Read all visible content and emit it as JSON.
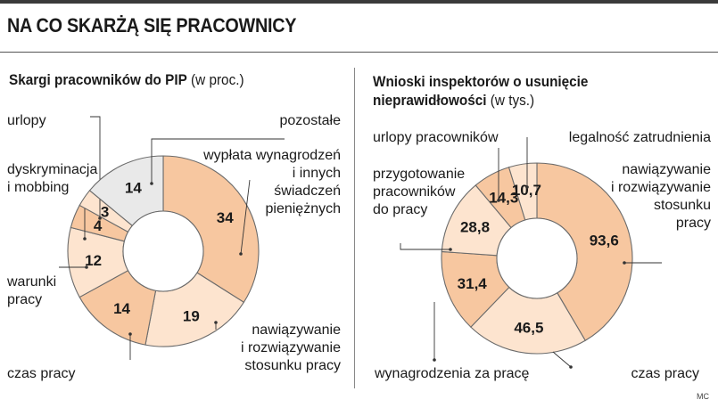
{
  "headline": "NA CO SKARŻĄ SIĘ PRACOWNICY",
  "credit": "MC",
  "colors": {
    "accent": "#c8102e",
    "fill_dark": "#f7c7a0",
    "fill_light": "#fde4cf",
    "fill_grey": "#e9e9e9",
    "stroke": "#6b6b6b",
    "leader": "#333333"
  },
  "chart_data": [
    {
      "type": "pie",
      "title": "Skargi pracowników do PIP",
      "subtitle": "(w proc.)",
      "slices": [
        {
          "label": "wypłata wynagrodzeń i innych świadczeń pieniężnych",
          "label_lines": [
            "wypłata wynagrodzeń",
            "i innych",
            "świadczeń",
            "pieniężnych"
          ],
          "value": 34,
          "value_label": "34",
          "fill": "fill_dark"
        },
        {
          "label": "nawiązywanie i rozwiązywanie stosunku pracy",
          "label_lines": [
            "nawiązywanie",
            "i rozwiązywanie",
            "stosunku pracy"
          ],
          "value": 19,
          "value_label": "19",
          "fill": "fill_light"
        },
        {
          "label": "czas pracy",
          "label_lines": [
            "czas pracy"
          ],
          "value": 14,
          "value_label": "14",
          "fill": "fill_dark"
        },
        {
          "label": "warunki pracy",
          "label_lines": [
            "warunki",
            "pracy"
          ],
          "value": 12,
          "value_label": "12",
          "fill": "fill_light"
        },
        {
          "label": "dyskryminacja i mobbing",
          "label_lines": [
            "dyskryminacja",
            "i mobbing"
          ],
          "value": 4,
          "value_label": "4",
          "fill": "fill_dark"
        },
        {
          "label": "urlopy",
          "label_lines": [
            "urlopy"
          ],
          "value": 3,
          "value_label": "3",
          "fill": "fill_light"
        },
        {
          "label": "pozostałe",
          "label_lines": [
            "pozostałe"
          ],
          "value": 14,
          "value_label": "14",
          "fill": "fill_grey"
        }
      ]
    },
    {
      "type": "pie",
      "title": "Wnioski inspektorów o usunięcie nieprawidłowości",
      "title_lines": [
        "Wnioski inspektorów o usunięcie",
        "nieprawidłowości"
      ],
      "subtitle": "(w tys.)",
      "slices": [
        {
          "label": "nawiązywanie i rozwiązywanie stosunku pracy",
          "label_lines": [
            "nawiązywanie",
            "i rozwiązywanie",
            "stosunku",
            "pracy"
          ],
          "value": 93.6,
          "value_label": "93,6",
          "fill": "fill_dark"
        },
        {
          "label": "czas pracy",
          "label_lines": [
            "czas pracy"
          ],
          "value": 46.5,
          "value_label": "46,5",
          "fill": "fill_light"
        },
        {
          "label": "wynagrodzenia za pracę",
          "label_lines": [
            "wynagrodzenia za pracę"
          ],
          "value": 31.4,
          "value_label": "31,4",
          "fill": "fill_dark"
        },
        {
          "label": "przygotowanie pracowników do pracy",
          "label_lines": [
            "przygotowanie",
            "pracowników",
            "do pracy"
          ],
          "value": 28.8,
          "value_label": "28,8",
          "fill": "fill_light"
        },
        {
          "label": "urlopy pracowników",
          "label_lines": [
            "urlopy pracowników"
          ],
          "value": 14.3,
          "value_label": "14,3",
          "fill": "fill_dark"
        },
        {
          "label": "legalność zatrudnienia",
          "label_lines": [
            "legalność zatrudnienia"
          ],
          "value": 10.7,
          "value_label": "10,7",
          "fill": "fill_light"
        }
      ]
    }
  ]
}
